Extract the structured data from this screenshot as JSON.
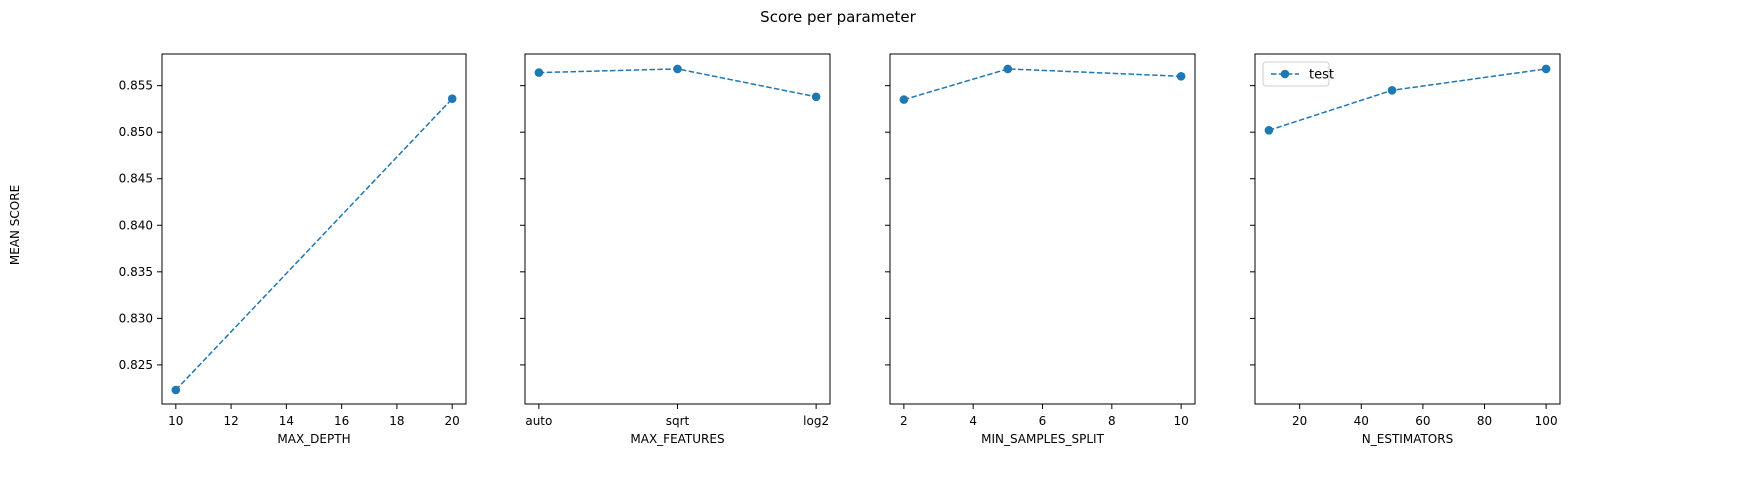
{
  "figure": {
    "suptitle": "Score per parameter",
    "ylabel": "MEAN SCORE"
  },
  "colors": {
    "series": "#1f77b4",
    "axes": "#000000",
    "background": "#ffffff"
  },
  "chart_data": [
    {
      "type": "line",
      "xlabel": "MAX_DEPTH",
      "ylabel": "MEAN SCORE",
      "x_scale": "linear",
      "xlim": [
        9.5,
        20.5
      ],
      "ylim": [
        0.8208,
        0.8584
      ],
      "x_ticks": [
        10,
        12,
        14,
        16,
        18,
        20
      ],
      "y_ticks": [
        0.825,
        0.83,
        0.835,
        0.84,
        0.845,
        0.85,
        0.855
      ],
      "y_tick_labels": [
        "0.825",
        "0.830",
        "0.835",
        "0.840",
        "0.845",
        "0.850",
        "0.855"
      ],
      "series": [
        {
          "x": [
            10,
            20
          ],
          "values": [
            0.8223,
            0.8536
          ],
          "line_style": "dashed",
          "marker": "circle"
        }
      ],
      "grid": false,
      "legend": null
    },
    {
      "type": "line",
      "xlabel": "MAX_FEATURES",
      "x_scale": "categorical",
      "categories": [
        "auto",
        "sqrt",
        "log2"
      ],
      "xlim": [
        -0.1,
        2.1
      ],
      "ylim": [
        0.8208,
        0.8584
      ],
      "series": [
        {
          "values": [
            0.8564,
            0.8568,
            0.8538
          ],
          "line_style": "dashed",
          "marker": "circle"
        }
      ],
      "grid": false,
      "legend": null
    },
    {
      "type": "line",
      "xlabel": "MIN_SAMPLES_SPLIT",
      "x_scale": "linear",
      "xlim": [
        1.6,
        10.4
      ],
      "ylim": [
        0.8208,
        0.8584
      ],
      "x_ticks": [
        2,
        4,
        6,
        8,
        10
      ],
      "series": [
        {
          "x": [
            2,
            5,
            10
          ],
          "values": [
            0.8535,
            0.8568,
            0.856
          ],
          "line_style": "dashed",
          "marker": "circle"
        }
      ],
      "grid": false,
      "legend": null
    },
    {
      "type": "line",
      "xlabel": "N_ESTIMATORS",
      "x_scale": "linear",
      "xlim": [
        5.5,
        104.5
      ],
      "ylim": [
        0.8208,
        0.8584
      ],
      "x_ticks": [
        20,
        40,
        60,
        80,
        100
      ],
      "series": [
        {
          "name": "test",
          "x": [
            10,
            50,
            100
          ],
          "values": [
            0.8502,
            0.8545,
            0.8568
          ],
          "line_style": "dashed",
          "marker": "circle"
        }
      ],
      "grid": false,
      "legend": "upper-left"
    }
  ]
}
